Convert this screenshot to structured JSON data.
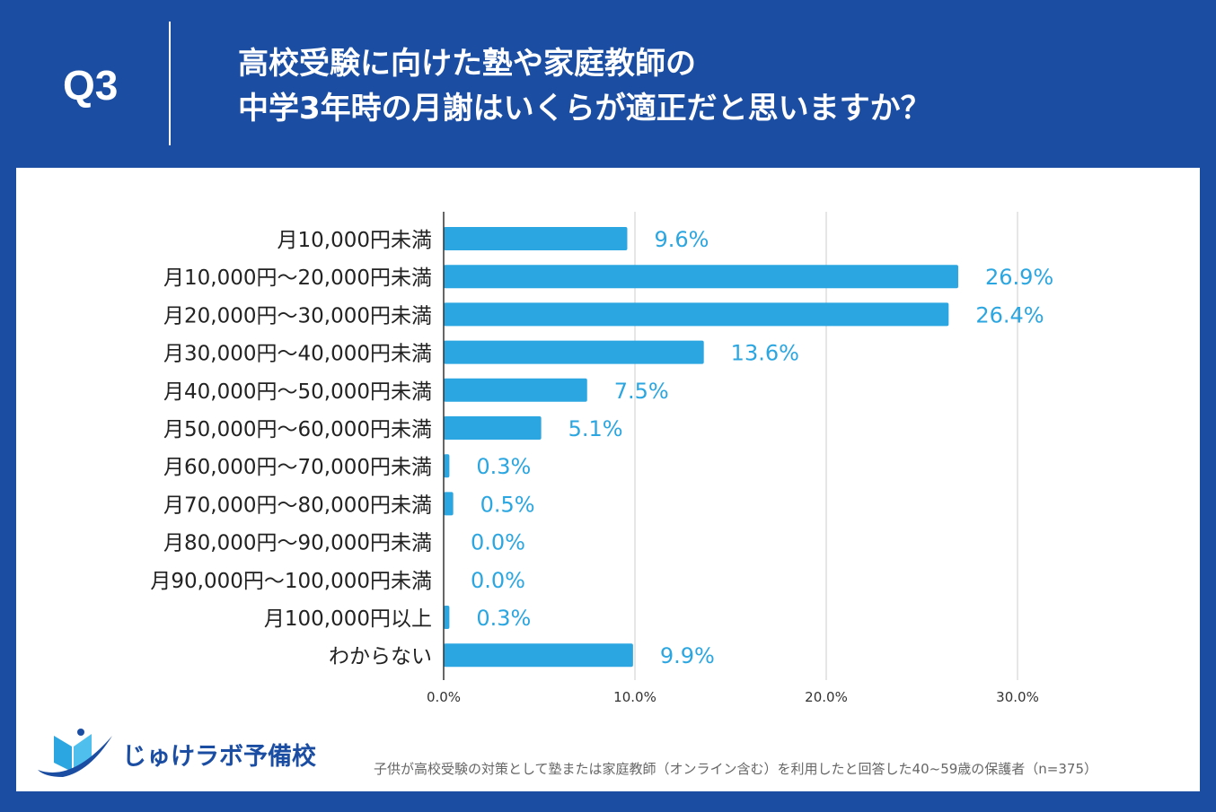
{
  "header": {
    "q_label": "Q3",
    "title_line1": "高校受験に向けた塾や家庭教師の",
    "title_line2": "中学3年時の月謝はいくらが適正だと思いますか？"
  },
  "chart_data": {
    "type": "bar",
    "orientation": "horizontal",
    "categories": [
      "月10,000円未満",
      "月10,000円～20,000円未満",
      "月20,000円～30,000円未満",
      "月30,000円～40,000円未満",
      "月40,000円～50,000円未満",
      "月50,000円～60,000円未満",
      "月60,000円～70,000円未満",
      "月70,000円～80,000円未満",
      "月80,000円～90,000円未満",
      "月90,000円～100,000円未満",
      "月100,000円以上",
      "わからない"
    ],
    "values": [
      9.6,
      26.9,
      26.4,
      13.6,
      7.5,
      5.1,
      0.3,
      0.5,
      0.0,
      0.0,
      0.3,
      9.9
    ],
    "data_labels": [
      "9.6%",
      "26.9%",
      "26.4%",
      "13.6%",
      "7.5%",
      "5.1%",
      "0.3%",
      "0.5%",
      "0.0%",
      "0.0%",
      "0.3%",
      "9.9%"
    ],
    "xticks": [
      0,
      10,
      20,
      30
    ],
    "xtick_labels": [
      "0.0%",
      "10.0%",
      "20.0%",
      "30.0%"
    ],
    "xlim": [
      0,
      30
    ],
    "grid": true,
    "colors": {
      "bar": "#2ba6e0",
      "label": "#2ba6e0"
    }
  },
  "footer": {
    "note": "子供が高校受験の対策として塾または家庭教師（オンライン含む）を利用したと回答した40~59歳の保護者（n=375）",
    "logo_text": "じゅけラボ予備校"
  },
  "colors": {
    "background": "#1b4ea3"
  }
}
